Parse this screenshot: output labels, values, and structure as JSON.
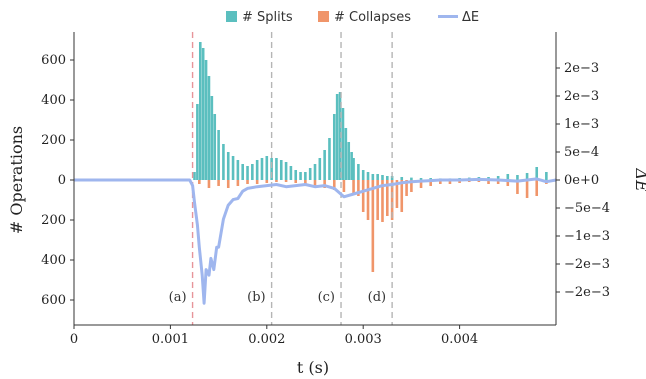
{
  "chart_data": {
    "type": "bar",
    "xlabel": "t (s)",
    "ylabel_left": "# Operations",
    "ylabel_right": "ΔE",
    "xlim": [
      0,
      0.005
    ],
    "ylim_left": [
      -700,
      700
    ],
    "ylim_right": [
      -0.0025,
      0.0025
    ],
    "x_ticks": [
      0,
      0.001,
      0.002,
      0.003,
      0.004
    ],
    "x_tick_labels": [
      "0",
      "0.001",
      "0.002",
      "0.003",
      "0.004"
    ],
    "left_ticks": [
      600,
      400,
      200,
      0,
      -200,
      -400,
      -600
    ],
    "left_tick_labels": [
      "600",
      "400",
      "200",
      "0",
      "200",
      "400",
      "600"
    ],
    "right_ticks": [
      0.002,
      0.0015,
      0.001,
      0.0005,
      0,
      -0.0005,
      -0.001,
      -0.0015,
      -0.002
    ],
    "right_tick_labels": [
      "2e−3",
      "2e−3",
      "1e−3",
      "5e−4",
      "0e+0",
      "−5e−4",
      "−1e−3",
      "−2e−3",
      "−2e−3"
    ],
    "legend": [
      {
        "name": "# Splits",
        "color": "#5bbfbf",
        "kind": "box"
      },
      {
        "name": "# Collapses",
        "color": "#f0956a",
        "kind": "box"
      },
      {
        "name": "ΔE",
        "color": "#9fb6ee",
        "kind": "line"
      }
    ],
    "legend_placement": "top",
    "vlines": [
      {
        "x": 0.00123,
        "label": "(a)",
        "color": "#e7959a"
      },
      {
        "x": 0.00205,
        "label": "(b)",
        "color": "#b5b5b5"
      },
      {
        "x": 0.00277,
        "label": "(c)",
        "color": "#b5b5b5"
      },
      {
        "x": 0.0033,
        "label": "(d)",
        "color": "#b5b5b5"
      }
    ],
    "series": [
      {
        "name": "# Splits",
        "color": "#5bbfbf",
        "x": [
          0.00125,
          0.00128,
          0.00131,
          0.00134,
          0.00137,
          0.0014,
          0.00143,
          0.00146,
          0.0015,
          0.00155,
          0.0016,
          0.00165,
          0.0017,
          0.00175,
          0.0018,
          0.00185,
          0.0019,
          0.00195,
          0.002,
          0.00205,
          0.0021,
          0.00215,
          0.0022,
          0.00225,
          0.0023,
          0.00235,
          0.0024,
          0.00245,
          0.0025,
          0.00255,
          0.0026,
          0.00265,
          0.0027,
          0.00273,
          0.00276,
          0.00279,
          0.00282,
          0.00285,
          0.00288,
          0.0029,
          0.00295,
          0.003,
          0.00305,
          0.0031,
          0.00315,
          0.0032,
          0.00325,
          0.0033,
          0.0034,
          0.0035,
          0.0036,
          0.0037,
          0.0038,
          0.0039,
          0.004,
          0.0041,
          0.0042,
          0.0043,
          0.0044,
          0.0045,
          0.0046,
          0.0047,
          0.0048,
          0.0049
        ],
        "values": [
          40,
          380,
          690,
          660,
          600,
          520,
          420,
          330,
          250,
          180,
          140,
          120,
          100,
          80,
          70,
          80,
          100,
          110,
          120,
          110,
          110,
          100,
          90,
          70,
          50,
          40,
          40,
          60,
          80,
          110,
          150,
          210,
          330,
          430,
          440,
          360,
          260,
          190,
          140,
          110,
          80,
          50,
          40,
          30,
          30,
          25,
          20,
          20,
          15,
          12,
          10,
          10,
          8,
          8,
          10,
          12,
          15,
          15,
          20,
          30,
          25,
          35,
          65,
          40
        ]
      },
      {
        "name": "# Collapses",
        "color": "#f0956a",
        "x": [
          0.0013,
          0.0014,
          0.0015,
          0.0016,
          0.0017,
          0.0018,
          0.0019,
          0.002,
          0.0021,
          0.0022,
          0.0023,
          0.0024,
          0.0025,
          0.0026,
          0.0027,
          0.0028,
          0.0029,
          0.00295,
          0.003,
          0.00305,
          0.0031,
          0.00315,
          0.0032,
          0.00325,
          0.0033,
          0.00335,
          0.0034,
          0.00345,
          0.0035,
          0.0036,
          0.0037,
          0.0038,
          0.0039,
          0.004,
          0.0041,
          0.0042,
          0.0043,
          0.0044,
          0.0045,
          0.0046,
          0.0047,
          0.0048,
          0.0049
        ],
        "values": [
          -20,
          -40,
          -30,
          -40,
          -30,
          -20,
          -20,
          -15,
          -10,
          -10,
          -15,
          -20,
          -30,
          -40,
          -50,
          -60,
          -70,
          -80,
          -160,
          -200,
          -460,
          -200,
          -210,
          -180,
          -200,
          -140,
          -160,
          -80,
          -60,
          -40,
          -30,
          -20,
          -20,
          -15,
          -10,
          -10,
          -20,
          -20,
          -30,
          -70,
          -90,
          -80,
          -20
        ]
      },
      {
        "name": "ΔE",
        "color": "#9fb6ee",
        "x": [
          0,
          0.0012,
          0.00123,
          0.00125,
          0.00128,
          0.0013,
          0.00133,
          0.00135,
          0.00137,
          0.0014,
          0.00142,
          0.00145,
          0.00148,
          0.0015,
          0.00155,
          0.0016,
          0.00165,
          0.0017,
          0.00175,
          0.0018,
          0.0019,
          0.002,
          0.0021,
          0.0022,
          0.0023,
          0.0024,
          0.0025,
          0.0026,
          0.0027,
          0.0028,
          0.0029,
          0.003,
          0.0031,
          0.0032,
          0.0033,
          0.0034,
          0.0035,
          0.0036,
          0.0037,
          0.0038,
          0.0039,
          0.004,
          0.0042,
          0.0044,
          0.0046,
          0.0047,
          0.0048,
          0.0049,
          0.005
        ],
        "values": [
          0,
          0,
          -0.0001,
          -0.0004,
          -0.0008,
          -0.0012,
          -0.0017,
          -0.0022,
          -0.0016,
          -0.0017,
          -0.0014,
          -0.0016,
          -0.0012,
          -0.0012,
          -0.0007,
          -0.00045,
          -0.00035,
          -0.00033,
          -0.0002,
          -0.00015,
          -0.00012,
          -0.0001,
          -8e-05,
          -0.00012,
          -0.0001,
          -8e-05,
          -0.00012,
          -0.0001,
          -0.00015,
          -0.0003,
          -0.00025,
          -0.0002,
          -0.00015,
          -0.0001,
          -8e-05,
          -5e-05,
          -3e-05,
          -2e-05,
          -1e-05,
          0,
          0,
          0,
          1e-05,
          0,
          -2e-05,
          0,
          2e-05,
          -3e-05,
          0
        ]
      }
    ]
  },
  "colors": {
    "splits": "#5bbfbf",
    "collapses": "#f0956a",
    "energy": "#9fb6ee",
    "axis": "#333333"
  }
}
